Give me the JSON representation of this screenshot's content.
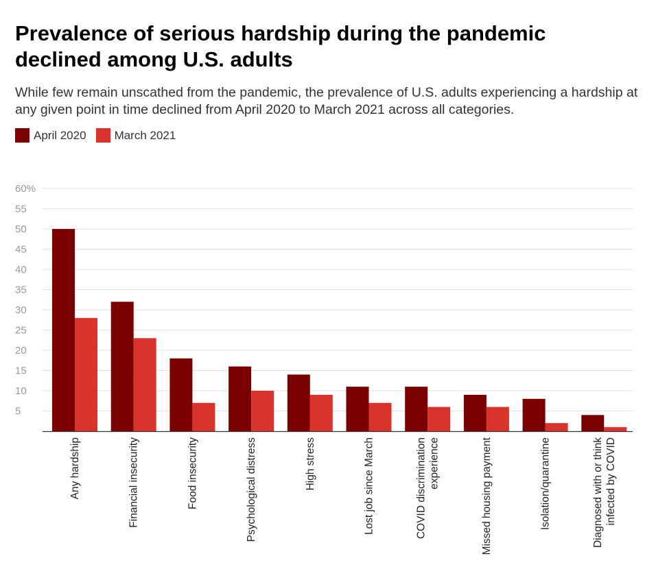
{
  "chart_data": {
    "type": "bar",
    "title": "Prevalence of serious hardship during the pandemic declined among U.S. adults",
    "subtitle": "While few remain unscathed from the pandemic, the prevalence of U.S. adults experiencing a hardship at any given point in time declined from April 2020 to March 2021 across all categories.",
    "categories": [
      [
        "Any hardship"
      ],
      [
        "Financial insecurity"
      ],
      [
        "Food insecurity"
      ],
      [
        "Psychological distress"
      ],
      [
        "High stress"
      ],
      [
        "Lost job since March"
      ],
      [
        "COVID discrimination",
        "experience"
      ],
      [
        "Missed housing payment"
      ],
      [
        "Isolation/quarantine"
      ],
      [
        "Diagnosed with or think",
        "infected by COVID"
      ]
    ],
    "series": [
      {
        "name": "April 2020",
        "color": "#7a0000",
        "values": [
          50,
          32,
          18,
          16,
          14,
          11,
          11,
          9,
          8,
          4
        ]
      },
      {
        "name": "March 2021",
        "color": "#d9342b",
        "values": [
          28,
          23,
          7,
          10,
          9,
          7,
          6,
          6,
          2,
          1
        ]
      }
    ],
    "yticks": [
      "60%",
      "55",
      "50",
      "45",
      "40",
      "35",
      "30",
      "25",
      "20",
      "15",
      "10",
      "5"
    ],
    "ylim": [
      0,
      60
    ],
    "grid": true,
    "legend": "top-left"
  }
}
